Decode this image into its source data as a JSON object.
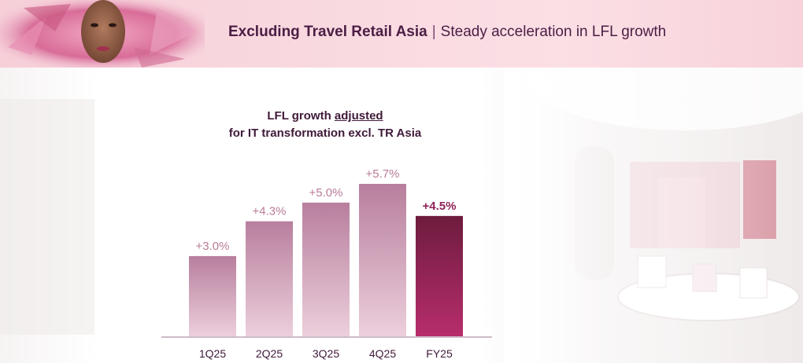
{
  "header": {
    "title_bold": "Excluding Travel Retail Asia",
    "separator": "|",
    "title_rest": "Steady acceleration in LFL growth"
  },
  "chart_data": {
    "type": "bar",
    "title_line1_prefix": "LFL growth ",
    "title_line1_emphasis": "adjusted",
    "title_line2": "for IT transformation excl. TR Asia",
    "categories": [
      "1Q25",
      "2Q25",
      "3Q25",
      "4Q25",
      "FY25"
    ],
    "values": [
      3.0,
      4.3,
      5.0,
      5.7,
      4.5
    ],
    "labels": [
      "+3.0%",
      "+4.3%",
      "+5.0%",
      "+5.7%",
      "+4.5%"
    ],
    "highlight_index": 4,
    "ylim": [
      0,
      5.7
    ],
    "grid": false,
    "colors": {
      "bar_top": "#b87f9d",
      "bar_bottom": "#eccfdc",
      "highlight_top": "#6d1c3e",
      "highlight_bottom": "#b72d6c",
      "label": "#b97b98",
      "highlight_label": "#8f2257",
      "axis_text": "#3f1a39"
    }
  }
}
